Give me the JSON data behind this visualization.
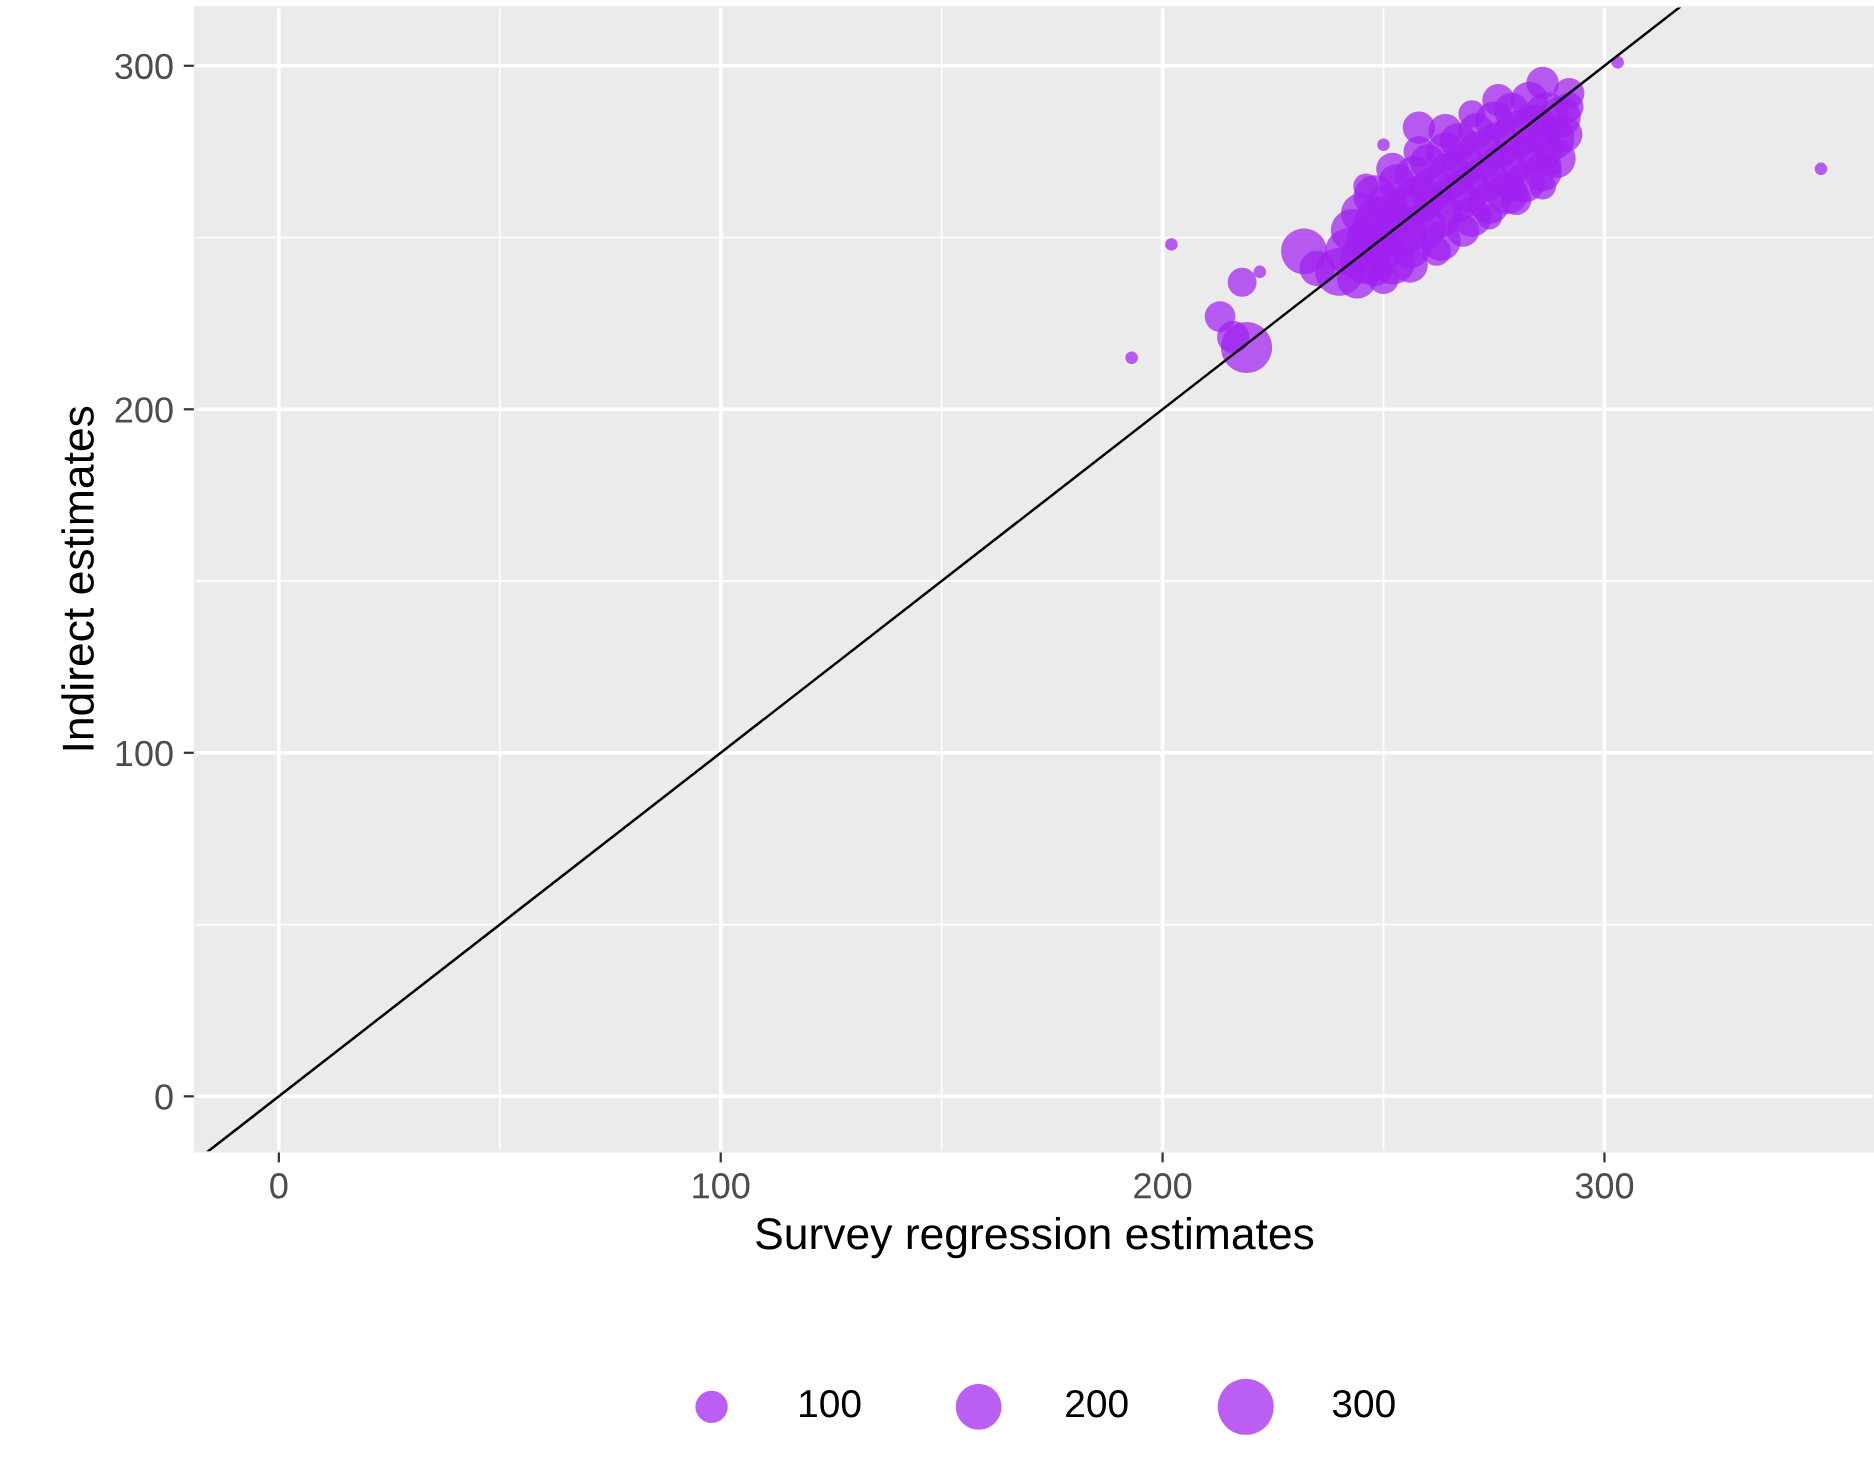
{
  "chart_data": {
    "type": "bubble",
    "xlabel": "Survey regression estimates",
    "ylabel": "Indirect estimates",
    "xlim": [
      -19,
      361
    ],
    "ylim": [
      -16,
      317
    ],
    "xticks": [
      0,
      {
        "value": 50,
        "label": null
      },
      100,
      {
        "value": 150,
        "label": null
      },
      200,
      {
        "value": 250,
        "label": null
      },
      300
    ],
    "yticks": [
      0,
      {
        "value": 50,
        "label": null
      },
      100,
      {
        "value": 150,
        "label": null
      },
      200,
      {
        "value": 250,
        "label": null
      },
      300
    ],
    "grid": true,
    "size_legend": [
      100,
      200,
      300
    ],
    "series": [
      {
        "color": "#a020f0",
        "x": [
          240,
          242,
          243,
          244,
          245,
          246,
          247,
          248,
          248,
          249,
          250,
          251,
          252,
          253,
          254,
          255,
          256,
          257,
          258,
          259,
          260,
          261,
          262,
          263,
          264,
          265,
          266,
          267,
          268,
          269,
          270,
          271,
          272,
          273,
          274,
          275,
          276,
          277,
          278,
          279,
          280,
          281,
          282,
          283,
          284,
          285,
          286,
          287,
          288,
          289,
          290,
          291,
          246,
          252,
          258,
          264,
          270,
          276,
          250,
          256,
          262,
          268,
          274,
          280,
          286,
          292,
          193,
          202,
          222,
          218,
          213,
          219,
          216,
          232,
          235,
          303,
          349,
          258,
          250,
          286,
          292,
          279,
          288,
          272
        ],
        "values": [
          240,
          246,
          252,
          238,
          257,
          244,
          250,
          241,
          262,
          255,
          247,
          260,
          243,
          266,
          252,
          258,
          247,
          268,
          261,
          253,
          272,
          264,
          257,
          249,
          275,
          268,
          261,
          278,
          271,
          264,
          256,
          281,
          274,
          267,
          260,
          284,
          277,
          270,
          263,
          287,
          280,
          273,
          266,
          290,
          282,
          276,
          269,
          286,
          279,
          273,
          285,
          280,
          265,
          270,
          275,
          281,
          286,
          290,
          238,
          242,
          246,
          252,
          256,
          261,
          265,
          288,
          215,
          248,
          240,
          237,
          227,
          218,
          221,
          246,
          241,
          301,
          270,
          282,
          277,
          295,
          292,
          264,
          271,
          257
        ],
        "sizes": [
          220,
          200,
          180,
          150,
          160,
          250,
          200,
          120,
          170,
          220,
          180,
          140,
          200,
          130,
          240,
          200,
          160,
          150,
          220,
          200,
          120,
          180,
          240,
          150,
          140,
          200,
          220,
          130,
          180,
          200,
          150,
          120,
          220,
          190,
          160,
          140,
          200,
          230,
          170,
          120,
          210,
          180,
          150,
          130,
          200,
          220,
          140,
          180,
          200,
          150,
          160,
          120,
          60,
          100,
          90,
          110,
          70,
          100,
          90,
          120,
          80,
          100,
          60,
          90,
          70,
          80,
          15,
          15,
          15,
          80,
          90,
          250,
          100,
          200,
          120,
          15,
          15,
          100,
          15,
          100,
          90,
          60,
          40,
          15
        ]
      },
      {
        "type": "line",
        "color": "#000000",
        "x": [
          -16,
          317
        ],
        "values": [
          -16,
          317
        ]
      }
    ]
  }
}
